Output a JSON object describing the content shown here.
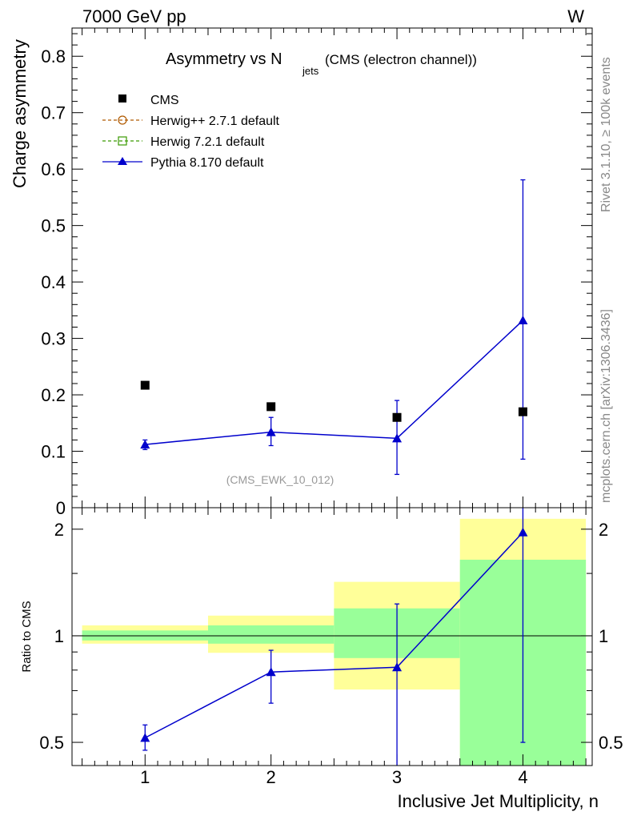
{
  "header": {
    "left_label": "7000 GeV pp",
    "right_label": "W"
  },
  "side_labels": {
    "upper": "Rivet 3.1.10, ≥ 100k events",
    "lower": "mcplots.cern.ch [arXiv:1306.3436]"
  },
  "colors": {
    "data": "#000000",
    "herwigpp": "#b05a00",
    "herwig7": "#3a9a00",
    "pythia": "#0000cc",
    "band_outer": "#ffff99",
    "band_inner": "#99ff99"
  },
  "chart_data": [
    {
      "type": "scatter",
      "title": "Asymmetry vs N",
      "title_sub": "jets",
      "title_suffix": " (CMS (electron channel))",
      "ylabel": "Charge asymmetry",
      "ylim": [
        0,
        0.85
      ],
      "yticks": [
        "0",
        "0.1",
        "0.2",
        "0.3",
        "0.4",
        "0.5",
        "0.6",
        "0.7",
        "0.8"
      ],
      "watermark": "(CMS_EWK_10_012)",
      "x": [
        1,
        2,
        3,
        4
      ],
      "legend": [
        {
          "name": "CMS",
          "marker": "square"
        },
        {
          "name": "Herwig++ 2.7.1 default",
          "marker": "open-circle"
        },
        {
          "name": "Herwig 7.2.1 default",
          "marker": "open-square"
        },
        {
          "name": "Pythia 8.170 default",
          "marker": "triangle"
        }
      ],
      "data_points": [
        0.217,
        0.179,
        0.16,
        0.17
      ],
      "pythia": {
        "values": [
          0.112,
          0.134,
          0.123,
          0.332
        ],
        "err_low": [
          0.103,
          0.11,
          0.059,
          0.086
        ],
        "err_high": [
          0.12,
          0.16,
          0.19,
          0.581
        ]
      }
    },
    {
      "type": "line",
      "ylabel": "Ratio to CMS",
      "xlabel": "Inclusive Jet Multiplicity, n",
      "xlim": [
        0.42,
        4.55
      ],
      "ylim": [
        0.43,
        2.3
      ],
      "xticks": [
        "1",
        "2",
        "3",
        "4"
      ],
      "yticks": [
        "0.5",
        "1",
        "2"
      ],
      "bands": [
        {
          "x0": 0.5,
          "x1": 1.5,
          "inner": [
            0.97,
            1.035
          ],
          "outer": [
            0.95,
            1.07
          ]
        },
        {
          "x0": 1.5,
          "x1": 2.5,
          "inner": [
            0.95,
            1.07
          ],
          "outer": [
            0.895,
            1.14
          ]
        },
        {
          "x0": 2.5,
          "x1": 3.5,
          "inner": [
            0.865,
            1.195
          ],
          "outer": [
            0.705,
            1.42
          ]
        },
        {
          "x0": 3.5,
          "x1": 4.5,
          "inner": [
            0.43,
            1.64
          ],
          "outer": [
            0.43,
            2.14
          ]
        }
      ],
      "pythia_ratio": {
        "values": [
          0.515,
          0.79,
          0.815,
          1.96
        ],
        "err_low": [
          0.475,
          0.645,
          0.43,
          0.5
        ],
        "err_high": [
          0.56,
          0.91,
          1.23,
          2.3
        ]
      }
    }
  ]
}
